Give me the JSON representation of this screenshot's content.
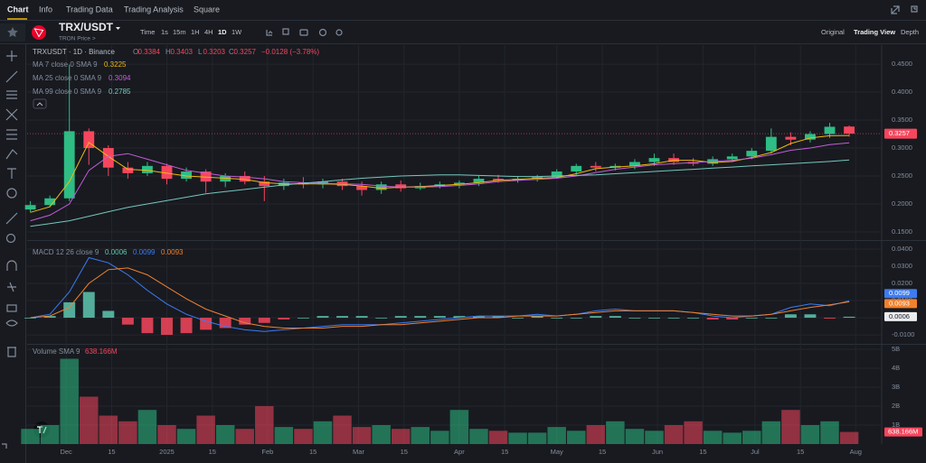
{
  "tabs": [
    "Chart",
    "Info",
    "Trading Data",
    "Trading Analysis",
    "Square"
  ],
  "symbol": "TRX/USDT",
  "subtitle": "TRON Price >",
  "intervals": [
    "Time",
    "1s",
    "15m",
    "1H",
    "4H",
    "1D",
    "1W"
  ],
  "views": [
    "Original",
    "Trading View",
    "Depth"
  ],
  "chart_data": [
    {
      "type": "candlestick",
      "title": "TRXUSDT · 1D · Binance",
      "ohlc_letters": [
        "O",
        "H",
        "L",
        "C"
      ],
      "change": "−0.0128 (−3.78%)",
      "up_color": "#2ebd85",
      "down_color": "#f6465d",
      "xlim": [
        -1,
        262
      ],
      "xticks": [
        {
          "value": 11,
          "label": "Dec"
        },
        {
          "value": 25,
          "label": "15"
        },
        {
          "value": 42,
          "label": "2025"
        },
        {
          "value": 56,
          "label": "15"
        },
        {
          "value": 73,
          "label": "Feb"
        },
        {
          "value": 87,
          "label": "15"
        },
        {
          "value": 101,
          "label": "Mar"
        },
        {
          "value": 115,
          "label": "15"
        },
        {
          "value": 132,
          "label": "Apr"
        },
        {
          "value": 146,
          "label": "15"
        },
        {
          "value": 162,
          "label": "May"
        },
        {
          "value": 176,
          "label": "15"
        },
        {
          "value": 193,
          "label": "Jun"
        },
        {
          "value": 207,
          "label": "15"
        },
        {
          "value": 223,
          "label": "Jul"
        },
        {
          "value": 237,
          "label": "15"
        },
        {
          "value": 254,
          "label": "Aug"
        }
      ],
      "x": [
        0,
        6,
        12,
        18,
        24,
        30,
        36,
        42,
        48,
        54,
        60,
        66,
        72,
        78,
        84,
        90,
        96,
        102,
        108,
        114,
        120,
        126,
        132,
        138,
        144,
        150,
        156,
        162,
        168,
        174,
        180,
        186,
        192,
        198,
        204,
        210,
        216,
        222,
        228,
        234,
        240,
        246,
        252
      ],
      "open": [
        0.19,
        0.198,
        0.21,
        0.33,
        0.3,
        0.265,
        0.255,
        0.268,
        0.245,
        0.258,
        0.24,
        0.25,
        0.24,
        0.232,
        0.238,
        0.235,
        0.24,
        0.232,
        0.225,
        0.235,
        0.228,
        0.232,
        0.235,
        0.238,
        0.245,
        0.242,
        0.245,
        0.248,
        0.258,
        0.268,
        0.265,
        0.268,
        0.275,
        0.282,
        0.275,
        0.272,
        0.28,
        0.285,
        0.295,
        0.32,
        0.315,
        0.325,
        0.3384
      ],
      "high": [
        0.205,
        0.215,
        0.449,
        0.335,
        0.305,
        0.275,
        0.275,
        0.272,
        0.265,
        0.262,
        0.255,
        0.258,
        0.25,
        0.245,
        0.248,
        0.245,
        0.245,
        0.24,
        0.24,
        0.242,
        0.238,
        0.24,
        0.242,
        0.25,
        0.252,
        0.25,
        0.252,
        0.262,
        0.272,
        0.275,
        0.272,
        0.28,
        0.29,
        0.29,
        0.282,
        0.285,
        0.29,
        0.3,
        0.335,
        0.328,
        0.33,
        0.345,
        0.3403
      ],
      "low": [
        0.185,
        0.195,
        0.205,
        0.27,
        0.25,
        0.245,
        0.25,
        0.235,
        0.24,
        0.22,
        0.23,
        0.235,
        0.205,
        0.225,
        0.228,
        0.228,
        0.225,
        0.215,
        0.218,
        0.222,
        0.225,
        0.228,
        0.228,
        0.232,
        0.238,
        0.238,
        0.24,
        0.245,
        0.252,
        0.258,
        0.26,
        0.262,
        0.268,
        0.27,
        0.268,
        0.268,
        0.275,
        0.28,
        0.29,
        0.305,
        0.31,
        0.318,
        0.3203
      ],
      "close": [
        0.198,
        0.21,
        0.33,
        0.3,
        0.265,
        0.255,
        0.268,
        0.245,
        0.258,
        0.24,
        0.25,
        0.24,
        0.232,
        0.238,
        0.235,
        0.24,
        0.232,
        0.225,
        0.235,
        0.228,
        0.232,
        0.235,
        0.238,
        0.245,
        0.242,
        0.245,
        0.248,
        0.258,
        0.268,
        0.265,
        0.268,
        0.275,
        0.282,
        0.275,
        0.272,
        0.28,
        0.285,
        0.295,
        0.32,
        0.315,
        0.325,
        0.338,
        0.3257
      ],
      "series": [
        {
          "name": "MA 7 close 0 SMA 9",
          "color": "#f0b90b",
          "values": [
            0.185,
            0.195,
            0.24,
            0.31,
            0.285,
            0.262,
            0.26,
            0.255,
            0.25,
            0.248,
            0.246,
            0.244,
            0.238,
            0.236,
            0.236,
            0.236,
            0.235,
            0.232,
            0.228,
            0.23,
            0.231,
            0.233,
            0.235,
            0.238,
            0.242,
            0.244,
            0.246,
            0.247,
            0.254,
            0.263,
            0.266,
            0.268,
            0.272,
            0.278,
            0.278,
            0.274,
            0.276,
            0.283,
            0.292,
            0.308,
            0.318,
            0.322,
            0.3225
          ]
        },
        {
          "name": "MA 25 close 0 SMA 9",
          "color": "#c65bd8",
          "values": [
            0.17,
            0.18,
            0.2,
            0.26,
            0.285,
            0.29,
            0.28,
            0.27,
            0.26,
            0.255,
            0.25,
            0.248,
            0.245,
            0.24,
            0.238,
            0.237,
            0.236,
            0.235,
            0.232,
            0.23,
            0.23,
            0.231,
            0.233,
            0.236,
            0.24,
            0.242,
            0.244,
            0.246,
            0.25,
            0.256,
            0.262,
            0.266,
            0.27,
            0.272,
            0.274,
            0.276,
            0.278,
            0.282,
            0.288,
            0.296,
            0.3,
            0.306,
            0.3094
          ]
        },
        {
          "name": "MA 99 close 0 SMA 9",
          "color": "#76c7bd",
          "values": [
            0.16,
            0.165,
            0.17,
            0.178,
            0.186,
            0.194,
            0.2,
            0.206,
            0.212,
            0.218,
            0.222,
            0.226,
            0.23,
            0.234,
            0.237,
            0.24,
            0.243,
            0.246,
            0.248,
            0.25,
            0.251,
            0.252,
            0.252,
            0.251,
            0.25,
            0.249,
            0.249,
            0.25,
            0.251,
            0.252,
            0.254,
            0.256,
            0.258,
            0.26,
            0.262,
            0.264,
            0.266,
            0.268,
            0.27,
            0.272,
            0.274,
            0.276,
            0.2785
          ]
        }
      ],
      "ylim": [
        0.137,
        0.484
      ],
      "yticks": [
        {
          "value": 0.15,
          "label": "0.1500"
        },
        {
          "value": 0.2,
          "label": "0.2000"
        },
        {
          "value": 0.25,
          "label": "0.2500"
        },
        {
          "value": 0.3,
          "label": "0.3000"
        },
        {
          "value": 0.35,
          "label": "0.3500"
        },
        {
          "value": 0.4,
          "label": "0.4000"
        },
        {
          "value": 0.45,
          "label": "0.4500"
        }
      ]
    },
    {
      "type": "macd",
      "title": "MACD 12 26 close 9",
      "series": [
        {
          "color": "#5ec8b0",
          "neg_color": "#f6465d",
          "values": [
            0,
            0.001,
            0.009,
            0.015,
            0.004,
            -0.004,
            -0.009,
            -0.01,
            -0.009,
            -0.007,
            -0.006,
            -0.004,
            -0.003,
            -0.001,
            0,
            0.001,
            0.001,
            0.001,
            0,
            0.001,
            0.001,
            0.001,
            0.001,
            0.001,
            0.001,
            0,
            0.001,
            0,
            0,
            0.001,
            0.001,
            0,
            0,
            0,
            0,
            -0.001,
            -0.001,
            0,
            0,
            0.002,
            0.002,
            -0.0005,
            0.0006
          ]
        },
        {
          "color": "#3d7bf0",
          "values": [
            0.0,
            0.002,
            0.015,
            0.035,
            0.032,
            0.025,
            0.016,
            0.008,
            0.002,
            -0.002,
            -0.005,
            -0.007,
            -0.008,
            -0.007,
            -0.006,
            -0.005,
            -0.004,
            -0.004,
            -0.004,
            -0.003,
            -0.002,
            -0.001,
            0.0,
            0.001,
            0.001,
            0.001,
            0.002,
            0.001,
            0.002,
            0.004,
            0.005,
            0.004,
            0.004,
            0.004,
            0.003,
            0.001,
            0.0,
            0.001,
            0.002,
            0.006,
            0.008,
            0.007,
            0.0099
          ]
        },
        {
          "color": "#f0812f",
          "values": [
            0.0,
            0.001,
            0.006,
            0.02,
            0.028,
            0.029,
            0.025,
            0.018,
            0.011,
            0.005,
            0.001,
            -0.003,
            -0.005,
            -0.006,
            -0.006,
            -0.006,
            -0.005,
            -0.005,
            -0.004,
            -0.004,
            -0.003,
            -0.002,
            -0.001,
            0.0,
            0.0,
            0.001,
            0.001,
            0.001,
            0.002,
            0.003,
            0.004,
            0.004,
            0.004,
            0.004,
            0.003,
            0.002,
            0.001,
            0.001,
            0.002,
            0.004,
            0.006,
            0.0075,
            0.0093
          ]
        }
      ],
      "ylim": [
        -0.0147,
        0.0442
      ],
      "yticks": [
        {
          "value": -0.01,
          "label": "-0.0100"
        },
        {
          "value": 0,
          "label": "0.0000"
        },
        {
          "value": 0.01,
          "label": "0.0100"
        },
        {
          "value": 0.02,
          "label": "0.0200"
        },
        {
          "value": 0.03,
          "label": "0.0300"
        },
        {
          "value": 0.04,
          "label": "0.0400"
        }
      ]
    },
    {
      "type": "volume",
      "title": "Volume SMA 9",
      "values": [
        0.8,
        1.0,
        4.5,
        2.5,
        1.5,
        1.2,
        1.8,
        1.0,
        0.8,
        1.5,
        1.0,
        0.8,
        2.0,
        0.9,
        0.8,
        1.2,
        1.5,
        0.9,
        1.0,
        0.8,
        0.9,
        0.7,
        1.8,
        0.8,
        0.7,
        0.6,
        0.6,
        0.9,
        0.7,
        1.0,
        1.2,
        0.8,
        0.7,
        1.0,
        1.2,
        0.7,
        0.6,
        0.7,
        1.2,
        1.8,
        1.0,
        1.2,
        0.638166
      ],
      "value_labels": [
        null,
        null,
        null,
        null,
        null,
        null,
        null,
        null,
        null,
        null,
        null,
        null,
        null,
        null,
        null,
        null,
        null,
        null,
        null,
        null,
        null,
        null,
        null,
        null,
        null,
        null,
        null,
        null,
        null,
        null,
        null,
        null,
        null,
        null,
        null,
        null,
        null,
        null,
        null,
        null,
        null,
        null,
        "638.166M"
      ],
      "ylim": [
        0,
        5.19
      ],
      "yticks": [
        {
          "value": 1,
          "label": "1B"
        },
        {
          "value": 2,
          "label": "2B"
        },
        {
          "value": 3,
          "label": "3B"
        },
        {
          "value": 4,
          "label": "4B"
        },
        {
          "value": 5,
          "label": "5B"
        }
      ]
    }
  ]
}
